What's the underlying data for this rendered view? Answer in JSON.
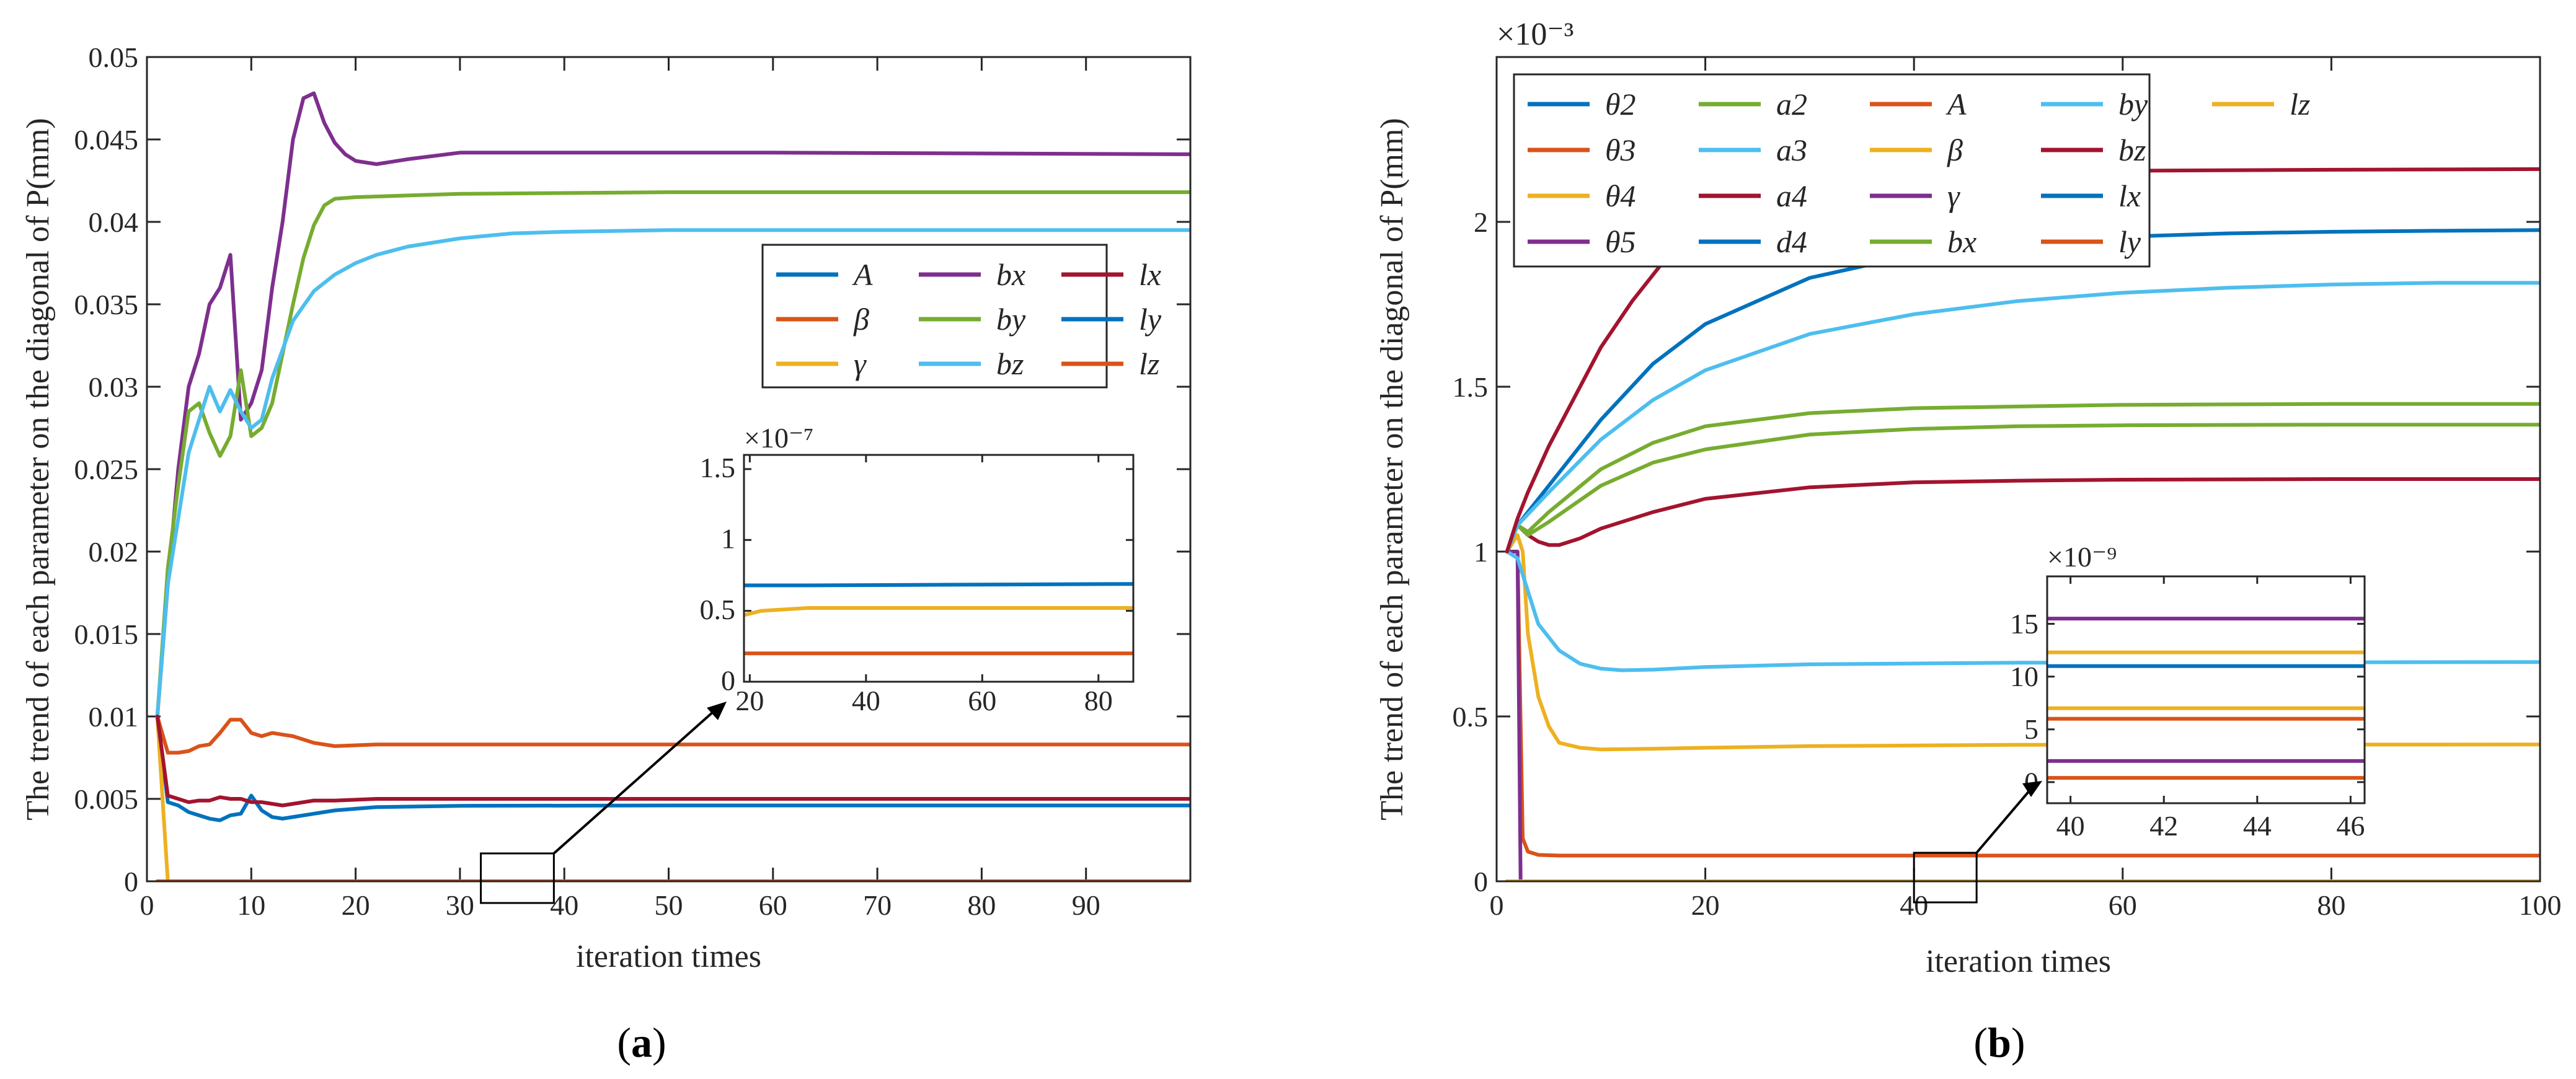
{
  "chart_data": [
    {
      "panel_label": "a",
      "type": "line",
      "xlabel": "iteration times",
      "ylabel": "The trend of each parameter on the diagonal of P(mm)",
      "xlim": [
        0,
        100
      ],
      "ylim": [
        0,
        0.05
      ],
      "xticks": [
        "0",
        "10",
        "20",
        "30",
        "40",
        "50",
        "60",
        "70",
        "80",
        "90"
      ],
      "xtick_values": [
        0,
        10,
        20,
        30,
        40,
        50,
        60,
        70,
        80,
        90
      ],
      "yticks": [
        "0",
        "0.005",
        "0.01",
        "0.015",
        "0.02",
        "0.025",
        "0.03",
        "0.035",
        "0.04",
        "0.045",
        "0.05"
      ],
      "ytick_values": [
        0,
        0.005,
        0.01,
        0.015,
        0.02,
        0.025,
        0.03,
        0.035,
        0.04,
        0.045,
        0.05
      ],
      "grid": false,
      "legend_position": "upper-right",
      "legend_ncol": 3,
      "series": [
        {
          "name": "A",
          "color": "#0072BD",
          "x": [
            1,
            2,
            3,
            4,
            5,
            6,
            7,
            8,
            9,
            10,
            11,
            12,
            13,
            15,
            18,
            22,
            30,
            50,
            100
          ],
          "y": [
            0.01,
            0.0048,
            0.0046,
            0.0042,
            0.004,
            0.0038,
            0.0037,
            0.004,
            0.0041,
            0.0052,
            0.0043,
            0.0039,
            0.0038,
            0.004,
            0.0043,
            0.0045,
            0.00458,
            0.0046,
            0.0046
          ]
        },
        {
          "name": "β",
          "color": "#D95319",
          "x": [
            1,
            2,
            3,
            4,
            5,
            6,
            7,
            8,
            9,
            10,
            11,
            12,
            13,
            14,
            16,
            18,
            22,
            30,
            50,
            100
          ],
          "y": [
            0.01,
            0.0078,
            0.0078,
            0.0079,
            0.0082,
            0.0083,
            0.009,
            0.0098,
            0.0098,
            0.009,
            0.0088,
            0.009,
            0.0089,
            0.0088,
            0.0084,
            0.0082,
            0.0083,
            0.0083,
            0.0083,
            0.0083
          ]
        },
        {
          "name": "γ",
          "color": "#EDB120",
          "x": [
            1,
            1.5,
            2,
            3,
            10,
            50,
            100
          ],
          "y": [
            0.01,
            0.005,
            0,
            0,
            0,
            0,
            0
          ]
        },
        {
          "name": "bx",
          "color": "#7E2F8E",
          "x": [
            1,
            2,
            3,
            4,
            5,
            6,
            7,
            8,
            9,
            10,
            11,
            12,
            13,
            14,
            15,
            16,
            17,
            18,
            19,
            20,
            22,
            25,
            30,
            40,
            60,
            100
          ],
          "y": [
            0.01,
            0.018,
            0.025,
            0.03,
            0.032,
            0.035,
            0.036,
            0.038,
            0.028,
            0.029,
            0.031,
            0.036,
            0.04,
            0.045,
            0.0475,
            0.0478,
            0.046,
            0.0448,
            0.0441,
            0.0437,
            0.0435,
            0.0438,
            0.0442,
            0.0442,
            0.0442,
            0.0441
          ]
        },
        {
          "name": "by",
          "color": "#77AC30",
          "x": [
            1,
            2,
            3,
            4,
            5,
            6,
            7,
            8,
            9,
            10,
            11,
            12,
            13,
            14,
            15,
            16,
            17,
            18,
            20,
            25,
            30,
            50,
            100
          ],
          "y": [
            0.01,
            0.019,
            0.024,
            0.0285,
            0.029,
            0.0272,
            0.0258,
            0.027,
            0.031,
            0.027,
            0.0275,
            0.029,
            0.032,
            0.035,
            0.0378,
            0.0398,
            0.041,
            0.0414,
            0.0415,
            0.0416,
            0.0417,
            0.0418,
            0.0418
          ]
        },
        {
          "name": "bz",
          "color": "#4DBEEE",
          "x": [
            1,
            2,
            3,
            4,
            5,
            6,
            7,
            8,
            9,
            10,
            11,
            12,
            14,
            16,
            18,
            20,
            22,
            25,
            30,
            35,
            40,
            50,
            100
          ],
          "y": [
            0.01,
            0.018,
            0.022,
            0.026,
            0.028,
            0.03,
            0.0285,
            0.0298,
            0.0285,
            0.0275,
            0.028,
            0.0305,
            0.034,
            0.0358,
            0.0368,
            0.0375,
            0.038,
            0.0385,
            0.039,
            0.0393,
            0.0394,
            0.0395,
            0.0395
          ]
        },
        {
          "name": "lx",
          "color": "#A2142F",
          "x": [
            1,
            2,
            3,
            4,
            5,
            6,
            7,
            8,
            9,
            10,
            11,
            12,
            13,
            14,
            16,
            18,
            22,
            30,
            50,
            100
          ],
          "y": [
            0.01,
            0.0052,
            0.005,
            0.0048,
            0.0049,
            0.0049,
            0.0051,
            0.005,
            0.005,
            0.0048,
            0.0048,
            0.0047,
            0.0046,
            0.0047,
            0.0049,
            0.0049,
            0.005,
            0.005,
            0.005,
            0.005
          ]
        },
        {
          "name": "ly",
          "color": "#0072BD",
          "x": [
            1,
            100
          ],
          "y": [
            0,
            0
          ]
        },
        {
          "name": "lz",
          "color": "#D95319",
          "x": [
            1,
            100
          ],
          "y": [
            0,
            0
          ]
        }
      ],
      "zoom_box": {
        "x": [
          32,
          39
        ],
        "y": [
          -0.0015,
          0.0015
        ]
      },
      "inset": {
        "exponent_label": "×10⁻⁷",
        "xlim": [
          19,
          86
        ],
        "ylim": [
          0,
          1.6
        ],
        "xticks": [
          "20",
          "40",
          "60",
          "80"
        ],
        "xtick_values": [
          20,
          40,
          60,
          80
        ],
        "yticks": [
          "0",
          "0.5",
          "1",
          "1.5"
        ],
        "ytick_values": [
          0,
          0.5,
          1,
          1.5
        ],
        "series": [
          {
            "color": "#0072BD",
            "x": [
              19,
              30,
              86
            ],
            "y": [
              0.68,
              0.68,
              0.69
            ]
          },
          {
            "color": "#EDB120",
            "x": [
              19,
              22,
              26,
              30,
              40,
              86
            ],
            "y": [
              0.47,
              0.5,
              0.51,
              0.52,
              0.52,
              0.52
            ]
          },
          {
            "color": "#D95319",
            "x": [
              19,
              86
            ],
            "y": [
              0.2,
              0.2
            ]
          }
        ]
      }
    },
    {
      "panel_label": "b",
      "type": "line",
      "xlabel": "iteration times",
      "ylabel": "The trend of each parameter on the diagonal of P(mm)",
      "exponent_label": "×10⁻³",
      "xlim": [
        0,
        100
      ],
      "ylim": [
        0,
        2.5
      ],
      "xticks": [
        "0",
        "20",
        "40",
        "60",
        "80",
        "100"
      ],
      "xtick_values": [
        0,
        20,
        40,
        60,
        80,
        100
      ],
      "yticks": [
        "0",
        "0.5",
        "1",
        "1.5",
        "2"
      ],
      "ytick_values": [
        0,
        0.5,
        1,
        1.5,
        2
      ],
      "grid": false,
      "legend_position": "upper-left",
      "legend_ncol": 5,
      "series": [
        {
          "name": "θ2",
          "color": "#0072BD",
          "x": [
            1,
            2,
            5,
            10,
            15,
            20,
            30,
            40,
            50,
            60,
            70,
            80,
            90,
            100
          ],
          "y": [
            1,
            1.08,
            1.2,
            1.4,
            1.57,
            1.69,
            1.83,
            1.9,
            1.935,
            1.955,
            1.965,
            1.97,
            1.973,
            1.975
          ]
        },
        {
          "name": "θ3",
          "color": "#D95319",
          "x": [
            1,
            2,
            2.5,
            3,
            4,
            6,
            100
          ],
          "y": [
            1,
            1,
            0.13,
            0.09,
            0.08,
            0.078,
            0.078
          ]
        },
        {
          "name": "θ4",
          "color": "#EDB120",
          "x": [
            1,
            2,
            2.5,
            3,
            4,
            5,
            6,
            8,
            10,
            15,
            20,
            30,
            50,
            100
          ],
          "y": [
            1,
            1.05,
            1.0,
            0.75,
            0.56,
            0.47,
            0.42,
            0.405,
            0.4,
            0.402,
            0.405,
            0.41,
            0.414,
            0.415
          ]
        },
        {
          "name": "θ5",
          "color": "#7E2F8E",
          "x": [
            1,
            2,
            2.3,
            100
          ],
          "y": [
            1,
            1,
            0,
            0
          ]
        },
        {
          "name": "a2",
          "color": "#77AC30",
          "x": [
            1,
            2,
            3,
            5,
            10,
            15,
            20,
            30,
            40,
            50,
            60,
            80,
            100
          ],
          "y": [
            1,
            1.08,
            1.06,
            1.12,
            1.25,
            1.33,
            1.38,
            1.42,
            1.435,
            1.44,
            1.445,
            1.448,
            1.448
          ]
        },
        {
          "name": "a3",
          "color": "#4DBEEE",
          "x": [
            1,
            2,
            3,
            4,
            6,
            8,
            10,
            12,
            15,
            20,
            30,
            50,
            100
          ],
          "y": [
            1,
            0.98,
            0.88,
            0.78,
            0.7,
            0.66,
            0.645,
            0.64,
            0.642,
            0.65,
            0.658,
            0.663,
            0.665
          ]
        },
        {
          "name": "a4",
          "color": "#A2142F",
          "x": [
            1,
            2,
            3,
            4,
            5,
            6,
            8,
            10,
            15,
            20,
            30,
            40,
            50,
            60,
            80,
            100
          ],
          "y": [
            1,
            1.08,
            1.05,
            1.03,
            1.02,
            1.02,
            1.04,
            1.07,
            1.12,
            1.16,
            1.195,
            1.21,
            1.215,
            1.218,
            1.22,
            1.22
          ]
        },
        {
          "name": "d4",
          "color": "#0072BD",
          "x": [
            1,
            100
          ],
          "y": [
            0,
            0
          ]
        },
        {
          "name": "A",
          "color": "#D95319",
          "x": [
            1,
            100
          ],
          "y": [
            0,
            0
          ]
        },
        {
          "name": "β",
          "color": "#EDB120",
          "x": [
            1,
            100
          ],
          "y": [
            0,
            0
          ]
        },
        {
          "name": "γ",
          "color": "#7E2F8E",
          "x": [
            1,
            100
          ],
          "y": [
            0,
            0
          ]
        },
        {
          "name": "bx",
          "color": "#77AC30",
          "x": [
            1,
            2,
            3,
            5,
            10,
            15,
            20,
            30,
            40,
            50,
            60,
            80,
            100
          ],
          "y": [
            1,
            1.08,
            1.05,
            1.09,
            1.2,
            1.27,
            1.31,
            1.355,
            1.372,
            1.38,
            1.383,
            1.385,
            1.385
          ]
        },
        {
          "name": "by",
          "color": "#4DBEEE",
          "x": [
            1,
            2,
            5,
            10,
            15,
            20,
            30,
            40,
            50,
            60,
            70,
            80,
            90,
            100
          ],
          "y": [
            1,
            1.08,
            1.18,
            1.34,
            1.46,
            1.55,
            1.66,
            1.72,
            1.76,
            1.785,
            1.8,
            1.81,
            1.815,
            1.815
          ]
        },
        {
          "name": "bz",
          "color": "#A2142F",
          "x": [
            1,
            2,
            3,
            5,
            8,
            10,
            13,
            16,
            19,
            22,
            25,
            30,
            40,
            50,
            60,
            80,
            100
          ],
          "y": [
            1,
            1.1,
            1.18,
            1.32,
            1.5,
            1.62,
            1.76,
            1.88,
            1.98,
            2.06,
            2.1,
            2.13,
            2.145,
            2.15,
            2.155,
            2.158,
            2.16
          ]
        },
        {
          "name": "lx",
          "color": "#0072BD",
          "x": [
            1,
            100
          ],
          "y": [
            0,
            0
          ]
        },
        {
          "name": "ly",
          "color": "#D95319",
          "x": [
            1,
            100
          ],
          "y": [
            0,
            0
          ]
        },
        {
          "name": "lz",
          "color": "#EDB120",
          "x": [
            1,
            100
          ],
          "y": [
            0,
            0
          ]
        }
      ],
      "zoom_box": {
        "x": [
          40,
          46
        ],
        "y": [
          -0.06,
          0.08
        ]
      },
      "inset": {
        "exponent_label": "×10⁻⁹",
        "xlim": [
          39.5,
          46.3
        ],
        "ylim": [
          -2,
          19.5
        ],
        "xticks": [
          "40",
          "42",
          "44",
          "46"
        ],
        "xtick_values": [
          40,
          42,
          44,
          46
        ],
        "yticks": [
          "0",
          "5",
          "10",
          "15"
        ],
        "ytick_values": [
          0,
          5,
          10,
          15
        ],
        "series": [
          {
            "color": "#7E2F8E",
            "x": [
              39.5,
              46.3
            ],
            "y": [
              15.5,
              15.5
            ]
          },
          {
            "color": "#EDB120",
            "x": [
              39.5,
              46.3
            ],
            "y": [
              12.3,
              12.3
            ]
          },
          {
            "color": "#0072BD",
            "x": [
              39.5,
              46.3
            ],
            "y": [
              11.0,
              11.0
            ]
          },
          {
            "color": "#EDB120",
            "x": [
              39.5,
              46.3
            ],
            "y": [
              7.0,
              7.0
            ]
          },
          {
            "color": "#D95319",
            "x": [
              39.5,
              46.3
            ],
            "y": [
              6.0,
              6.0
            ]
          },
          {
            "color": "#7E2F8E",
            "x": [
              39.5,
              46.3
            ],
            "y": [
              2.0,
              2.0
            ]
          },
          {
            "color": "#D95319",
            "x": [
              39.5,
              46.3
            ],
            "y": [
              0.4,
              0.4
            ]
          }
        ]
      }
    }
  ]
}
